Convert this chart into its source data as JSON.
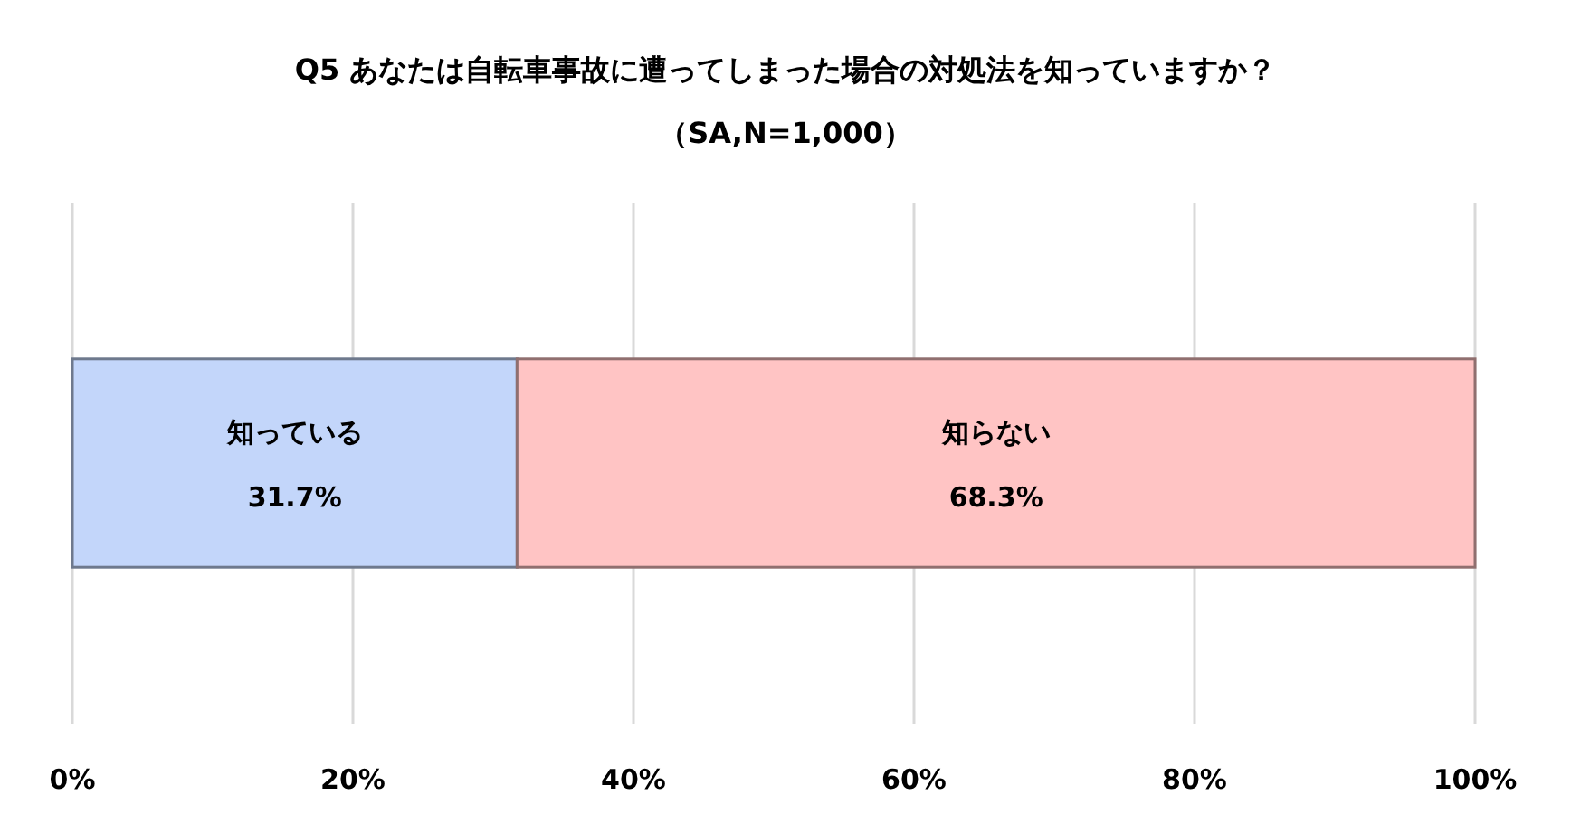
{
  "chart_data": {
    "type": "bar",
    "title": "Q5 あなたは自転車事故に遭ってしまった場合の対処法を知っていますか？",
    "subtitle": "（SA,N=1,000）",
    "orientation": "horizontal",
    "stacked": true,
    "categories": [
      null
    ],
    "series": [
      {
        "name": "知っている",
        "color": "#c3d6fa",
        "values": [
          31.7
        ],
        "value_labels": [
          "31.7%"
        ]
      },
      {
        "name": "知らない",
        "color": "#ffc4c4",
        "values": [
          68.3
        ],
        "value_labels": [
          "68.3%"
        ]
      }
    ],
    "xlim": [
      0,
      100
    ],
    "xticks": [
      {
        "value": 0,
        "label": "0%"
      },
      {
        "value": 20,
        "label": "20%"
      },
      {
        "value": 40,
        "label": "40%"
      },
      {
        "value": 60,
        "label": "60%"
      },
      {
        "value": 80,
        "label": "80%"
      },
      {
        "value": 100,
        "label": "100%"
      }
    ],
    "grid": "x"
  }
}
